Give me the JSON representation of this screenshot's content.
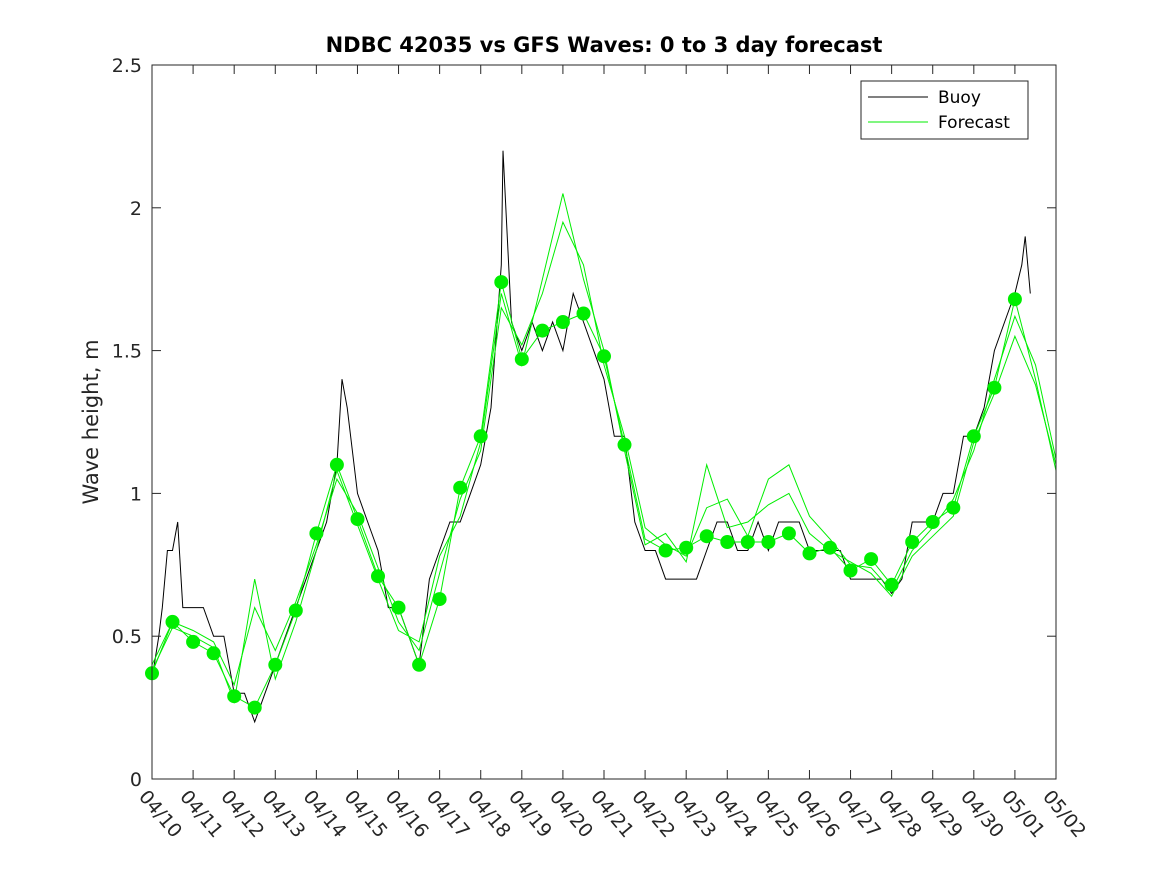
{
  "chart_data": {
    "type": "line",
    "title": "NDBC 42035 vs GFS Waves: 0 to 3 day forecast",
    "xlabel": "",
    "ylabel": "Wave height, m",
    "ylim": [
      0,
      2.5
    ],
    "yticks": [
      "0",
      "0.5",
      "1",
      "1.5",
      "2",
      "2.5"
    ],
    "xlim": [
      "04/10",
      "05/02"
    ],
    "xticks": [
      "04/10",
      "04/11",
      "04/12",
      "04/13",
      "04/14",
      "04/15",
      "04/16",
      "04/17",
      "04/18",
      "04/19",
      "04/20",
      "04/21",
      "04/22",
      "04/23",
      "04/24",
      "04/25",
      "04/26",
      "04/27",
      "04/28",
      "04/29",
      "04/30",
      "05/01",
      "05/02"
    ],
    "legend": {
      "position": "top-right",
      "entries": [
        "Buoy",
        "Forecast"
      ]
    },
    "colors": {
      "buoy": "#000000",
      "forecast": "#00ee00",
      "markers": "#00ee00"
    },
    "series": [
      {
        "name": "Buoy",
        "x": [
          "04/10 00:00",
          "04/10 04:00",
          "04/10 06:00",
          "04/10 09:00",
          "04/10 12:00",
          "04/10 15:00",
          "04/10 18:00",
          "04/11 00:00",
          "04/11 06:00",
          "04/11 12:00",
          "04/11 18:00",
          "04/12 00:00",
          "04/12 06:00",
          "04/12 12:00",
          "04/12 18:00",
          "04/13 00:00",
          "04/13 06:00",
          "04/13 12:00",
          "04/13 18:00",
          "04/14 00:00",
          "04/14 06:00",
          "04/14 12:00",
          "04/14 15:00",
          "04/14 18:00",
          "04/15 00:00",
          "04/15 06:00",
          "04/15 12:00",
          "04/15 18:00",
          "04/16 00:00",
          "04/16 06:00",
          "04/16 12:00",
          "04/16 18:00",
          "04/17 00:00",
          "04/17 06:00",
          "04/17 12:00",
          "04/17 18:00",
          "04/18 00:00",
          "04/18 06:00",
          "04/18 12:00",
          "04/18 13:00",
          "04/18 18:00",
          "04/19 00:00",
          "04/19 06:00",
          "04/19 12:00",
          "04/19 18:00",
          "04/20 00:00",
          "04/20 06:00",
          "04/20 12:00",
          "04/20 18:00",
          "04/21 00:00",
          "04/21 06:00",
          "04/21 12:00",
          "04/21 18:00",
          "04/22 00:00",
          "04/22 06:00",
          "04/22 12:00",
          "04/22 18:00",
          "04/23 00:00",
          "04/23 06:00",
          "04/23 12:00",
          "04/23 18:00",
          "04/24 00:00",
          "04/24 06:00",
          "04/24 12:00",
          "04/24 18:00",
          "04/25 00:00",
          "04/25 06:00",
          "04/25 12:00",
          "04/25 18:00",
          "04/26 00:00",
          "04/26 06:00",
          "04/26 12:00",
          "04/26 18:00",
          "04/27 00:00",
          "04/27 06:00",
          "04/27 12:00",
          "04/27 18:00",
          "04/28 00:00",
          "04/28 06:00",
          "04/28 12:00",
          "04/28 18:00",
          "04/29 00:00",
          "04/29 06:00",
          "04/29 12:00",
          "04/29 18:00",
          "04/30 00:00",
          "04/30 06:00",
          "04/30 12:00",
          "04/30 18:00",
          "05/01 00:00",
          "05/01 04:00",
          "05/01 06:00",
          "05/01 09:00"
        ],
        "values": [
          0.35,
          0.5,
          0.6,
          0.8,
          0.8,
          0.9,
          0.6,
          0.6,
          0.6,
          0.5,
          0.5,
          0.3,
          0.3,
          0.2,
          0.3,
          0.4,
          0.5,
          0.6,
          0.7,
          0.8,
          0.9,
          1.1,
          1.4,
          1.3,
          1.0,
          0.9,
          0.8,
          0.6,
          0.6,
          0.5,
          0.4,
          0.7,
          0.8,
          0.9,
          0.9,
          1.0,
          1.1,
          1.3,
          1.8,
          2.2,
          1.6,
          1.5,
          1.6,
          1.5,
          1.6,
          1.5,
          1.7,
          1.6,
          1.5,
          1.4,
          1.2,
          1.2,
          0.9,
          0.8,
          0.8,
          0.7,
          0.7,
          0.7,
          0.7,
          0.8,
          0.9,
          0.9,
          0.8,
          0.8,
          0.9,
          0.8,
          0.9,
          0.9,
          0.9,
          0.8,
          0.8,
          0.8,
          0.8,
          0.7,
          0.7,
          0.7,
          0.7,
          0.65,
          0.7,
          0.9,
          0.9,
          0.9,
          1.0,
          1.0,
          1.2,
          1.2,
          1.3,
          1.5,
          1.6,
          1.7,
          1.8,
          1.9,
          1.7
        ]
      },
      {
        "name": "Forecast",
        "runs": [
          {
            "x": [
              "04/10 00:00",
              "04/10 12:00",
              "04/11 00:00",
              "04/11 12:00",
              "04/12 00:00",
              "04/12 12:00",
              "04/13 00:00",
              "04/13 12:00",
              "04/14 00:00",
              "04/14 12:00",
              "04/15 00:00",
              "04/15 12:00",
              "04/16 00:00",
              "04/16 12:00",
              "04/17 00:00",
              "04/17 12:00",
              "04/18 00:00",
              "04/18 12:00",
              "04/19 00:00",
              "04/19 12:00",
              "04/20 00:00",
              "04/20 12:00",
              "04/21 00:00",
              "04/21 12:00",
              "04/22 00:00",
              "04/22 12:00",
              "04/23 00:00",
              "04/23 12:00",
              "04/24 00:00",
              "04/24 12:00",
              "04/25 00:00",
              "04/25 12:00",
              "04/26 00:00",
              "04/26 12:00",
              "04/27 00:00",
              "04/27 12:00",
              "04/28 00:00",
              "04/28 12:00",
              "04/29 00:00",
              "04/29 12:00",
              "04/30 00:00",
              "04/30 12:00",
              "05/01 00:00",
              "05/01 12:00",
              "05/02 00:00"
            ],
            "values": [
              0.37,
              0.55,
              0.48,
              0.44,
              0.29,
              0.25,
              0.4,
              0.59,
              0.86,
              1.1,
              0.91,
              0.71,
              0.6,
              0.4,
              0.63,
              1.02,
              1.2,
              1.74,
              1.47,
              1.57,
              1.6,
              1.63,
              1.48,
              1.17,
              0.84,
              0.8,
              0.81,
              0.85,
              0.83,
              0.83,
              0.83,
              0.86,
              0.79,
              0.81,
              0.73,
              0.77,
              0.68,
              0.83,
              0.9,
              0.95,
              1.2,
              1.37,
              1.68,
              1.4,
              1.08
            ]
          },
          {
            "x": [
              "04/10 00:00",
              "04/10 12:00",
              "04/11 00:00",
              "04/11 12:00",
              "04/12 00:00",
              "04/12 12:00",
              "04/13 00:00",
              "04/13 12:00",
              "04/14 00:00",
              "04/14 12:00",
              "04/15 00:00",
              "04/15 12:00",
              "04/16 00:00",
              "04/16 12:00",
              "04/17 00:00",
              "04/17 12:00",
              "04/18 00:00",
              "04/18 12:00",
              "04/19 00:00",
              "04/19 12:00",
              "04/20 00:00",
              "04/20 12:00",
              "04/21 00:00",
              "04/21 12:00",
              "04/22 00:00",
              "04/22 12:00",
              "04/23 00:00",
              "04/23 12:00",
              "04/24 00:00",
              "04/24 12:00",
              "04/25 00:00",
              "04/25 12:00",
              "04/26 00:00",
              "04/26 12:00",
              "04/27 00:00",
              "04/27 12:00",
              "04/28 00:00",
              "04/28 12:00",
              "04/29 00:00",
              "04/29 12:00",
              "04/30 00:00",
              "04/30 12:00",
              "05/01 00:00",
              "05/01 12:00",
              "05/02 00:00"
            ],
            "values": [
              0.4,
              0.55,
              0.52,
              0.48,
              0.33,
              0.6,
              0.45,
              0.62,
              0.82,
              1.05,
              0.93,
              0.74,
              0.55,
              0.45,
              0.72,
              0.98,
              1.15,
              1.65,
              1.52,
              1.7,
              1.95,
              1.8,
              1.45,
              1.2,
              0.88,
              0.82,
              0.78,
              0.95,
              0.98,
              0.85,
              1.05,
              1.1,
              0.92,
              0.84,
              0.75,
              0.74,
              0.66,
              0.8,
              0.88,
              0.98,
              1.15,
              1.4,
              1.62,
              1.45,
              1.12
            ]
          },
          {
            "x": [
              "04/10 00:00",
              "04/10 12:00",
              "04/11 00:00",
              "04/11 12:00",
              "04/12 00:00",
              "04/12 12:00",
              "04/13 00:00",
              "04/13 12:00",
              "04/14 00:00",
              "04/14 12:00",
              "04/15 00:00",
              "04/15 12:00",
              "04/16 00:00",
              "04/16 12:00",
              "04/17 00:00",
              "04/17 12:00",
              "04/18 00:00",
              "04/18 12:00",
              "04/19 00:00",
              "04/19 12:00",
              "04/20 00:00",
              "04/20 12:00",
              "04/21 00:00",
              "04/21 12:00",
              "04/22 00:00",
              "04/22 12:00",
              "04/23 00:00",
              "04/23 12:00",
              "04/24 00:00",
              "04/24 12:00",
              "04/25 00:00",
              "04/25 12:00",
              "04/26 00:00",
              "04/26 12:00",
              "04/27 00:00",
              "04/27 12:00",
              "04/28 00:00",
              "04/28 12:00",
              "04/29 00:00",
              "04/29 12:00",
              "04/30 00:00",
              "04/30 12:00",
              "05/01 00:00",
              "05/01 12:00",
              "05/02 00:00"
            ],
            "values": [
              0.38,
              0.53,
              0.5,
              0.46,
              0.27,
              0.7,
              0.35,
              0.55,
              0.8,
              1.08,
              0.89,
              0.7,
              0.52,
              0.48,
              0.78,
              0.92,
              1.18,
              1.7,
              1.45,
              1.75,
              2.05,
              1.75,
              1.5,
              1.15,
              0.82,
              0.86,
              0.76,
              1.1,
              0.88,
              0.9,
              0.96,
              1.0,
              0.86,
              0.8,
              0.76,
              0.72,
              0.64,
              0.78,
              0.85,
              0.92,
              1.18,
              1.35,
              1.55,
              1.38,
              1.1
            ]
          }
        ],
        "markers": {
          "x": [
            "04/10 00:00",
            "04/10 12:00",
            "04/11 00:00",
            "04/11 12:00",
            "04/12 00:00",
            "04/12 12:00",
            "04/13 00:00",
            "04/13 12:00",
            "04/14 00:00",
            "04/14 12:00",
            "04/15 00:00",
            "04/15 12:00",
            "04/16 00:00",
            "04/16 12:00",
            "04/17 00:00",
            "04/17 12:00",
            "04/18 00:00",
            "04/18 12:00",
            "04/19 00:00",
            "04/19 12:00",
            "04/20 00:00",
            "04/20 12:00",
            "04/21 00:00",
            "04/21 12:00",
            "04/22 12:00",
            "04/23 00:00",
            "04/23 12:00",
            "04/24 00:00",
            "04/24 12:00",
            "04/25 00:00",
            "04/25 12:00",
            "04/26 00:00",
            "04/26 12:00",
            "04/27 00:00",
            "04/27 12:00",
            "04/28 00:00",
            "04/28 12:00",
            "04/29 00:00",
            "04/29 12:00",
            "04/30 00:00",
            "04/30 12:00",
            "05/01 00:00"
          ],
          "values": [
            0.37,
            0.55,
            0.48,
            0.44,
            0.29,
            0.25,
            0.4,
            0.59,
            0.86,
            1.1,
            0.91,
            0.71,
            0.6,
            0.4,
            0.63,
            1.02,
            1.2,
            1.74,
            1.47,
            1.57,
            1.6,
            1.63,
            1.48,
            1.17,
            0.8,
            0.81,
            0.85,
            0.83,
            0.83,
            0.83,
            0.86,
            0.79,
            0.81,
            0.73,
            0.77,
            0.68,
            0.83,
            0.9,
            0.95,
            1.2,
            1.37,
            1.68
          ]
        }
      }
    ]
  }
}
